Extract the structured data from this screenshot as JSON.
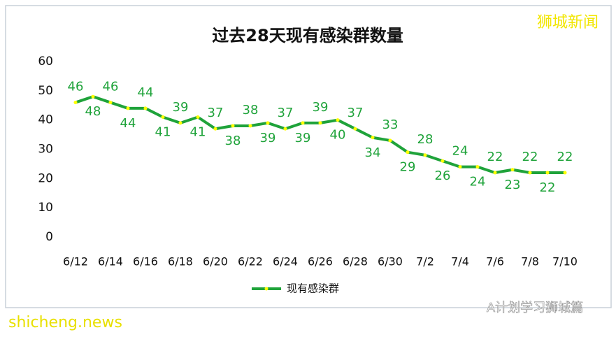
{
  "chart_data": {
    "type": "line",
    "title": "过去28天现有感染群数量",
    "categories": [
      "6/12",
      null,
      "6/14",
      null,
      "6/16",
      null,
      "6/18",
      null,
      "6/20",
      null,
      "6/22",
      null,
      "6/24",
      null,
      "6/26",
      null,
      "6/28",
      null,
      "6/30",
      null,
      "7/2",
      null,
      "7/4",
      null,
      "7/6",
      null,
      "7/8",
      null,
      "7/10"
    ],
    "series": [
      {
        "name": "现有感染群",
        "color": "#1fa33a",
        "marker_color": "#ffff00",
        "values": [
          46,
          48,
          46,
          44,
          44,
          41,
          39,
          41,
          37,
          38,
          38,
          39,
          37,
          39,
          39,
          40,
          37,
          34,
          33,
          29,
          28,
          26,
          24,
          24,
          22,
          23,
          22,
          22,
          22
        ]
      }
    ],
    "ylim": [
      0,
      60
    ],
    "yticks": [
      0,
      10,
      20,
      30,
      40,
      50,
      60
    ],
    "grid": false,
    "legend": "bottom"
  },
  "watermarks": {
    "top_right": "狮城新闻",
    "bottom_left": "shicheng.news",
    "bottom_right": "A计划学习狮城篇"
  }
}
